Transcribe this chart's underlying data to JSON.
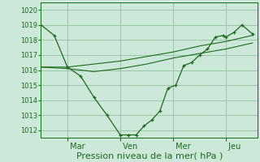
{
  "background_color": "#cce8d8",
  "grid_color": "#99c4aa",
  "line_color": "#1a6b1a",
  "xlabel": "Pression niveau de la mer( hPa )",
  "ylim": [
    1011.5,
    1020.5
  ],
  "yticks": [
    1012,
    1013,
    1014,
    1015,
    1016,
    1017,
    1018,
    1019,
    1020
  ],
  "xtick_labels": [
    " Mar",
    " Ven",
    " Mer",
    " Jeu"
  ],
  "xtick_positions": [
    1,
    3,
    5,
    7
  ],
  "x_vlines": [
    1,
    3,
    5,
    7
  ],
  "xlim": [
    0,
    8.2
  ],
  "series1_x": [
    0.0,
    0.5,
    1.0,
    1.5,
    2.0,
    2.5,
    3.0,
    3.3,
    3.6,
    3.9,
    4.2,
    4.5,
    4.8,
    5.1,
    5.4,
    5.7,
    6.0,
    6.3,
    6.6,
    6.9,
    7.0,
    7.3,
    7.6,
    8.0
  ],
  "series1_y": [
    1019.0,
    1018.3,
    1016.2,
    1015.6,
    1014.2,
    1013.0,
    1011.7,
    1011.7,
    1011.7,
    1012.3,
    1012.7,
    1013.3,
    1014.8,
    1015.0,
    1016.3,
    1016.5,
    1017.0,
    1017.4,
    1018.2,
    1018.3,
    1018.2,
    1018.5,
    1019.0,
    1018.4
  ],
  "series2_x": [
    0.0,
    1.0,
    2.0,
    3.0,
    4.0,
    5.0,
    6.0,
    7.0,
    8.0
  ],
  "series2_y": [
    1016.2,
    1016.2,
    1016.4,
    1016.6,
    1016.9,
    1017.2,
    1017.6,
    1017.9,
    1018.3
  ],
  "series3_x": [
    0.0,
    1.0,
    2.0,
    3.0,
    4.0,
    5.0,
    6.0,
    7.0,
    8.0
  ],
  "series3_y": [
    1016.2,
    1016.1,
    1015.9,
    1016.1,
    1016.4,
    1016.8,
    1017.1,
    1017.4,
    1017.8
  ],
  "ylabel_fontsize": 6,
  "xlabel_fontsize": 8,
  "xtick_fontsize": 7
}
